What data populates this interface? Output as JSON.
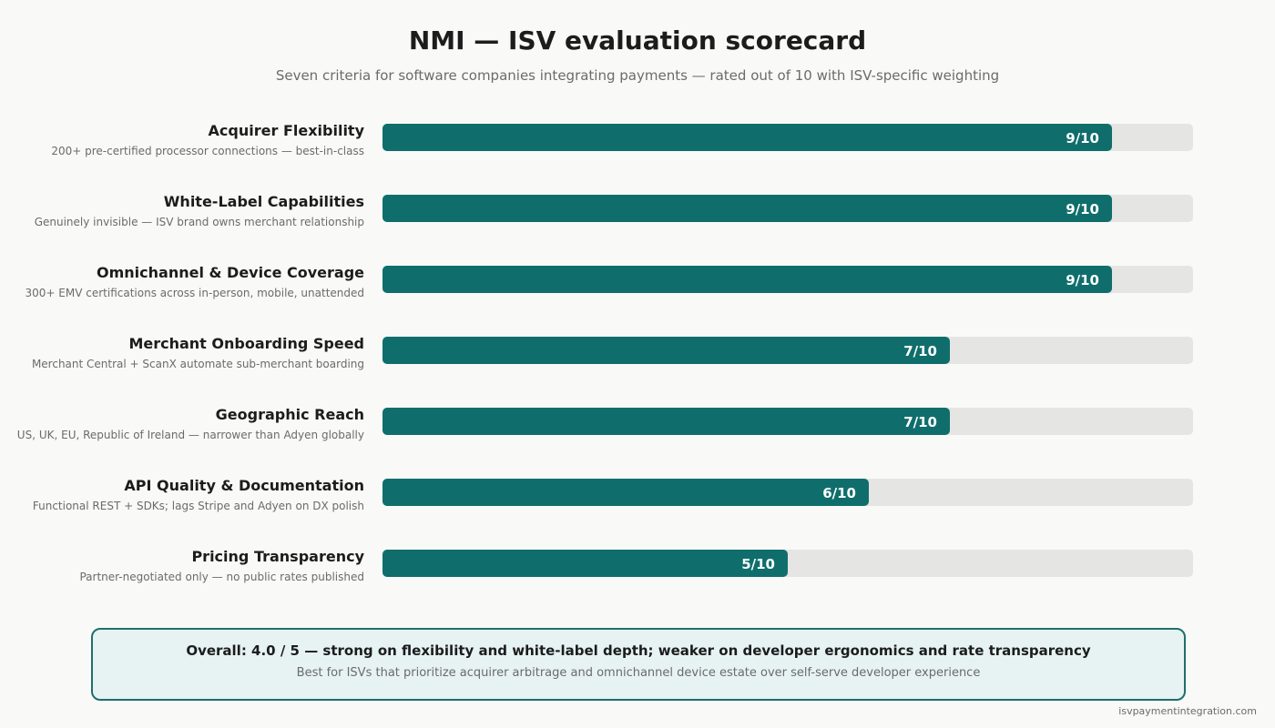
{
  "header": {
    "title": "NMI — ISV evaluation scorecard",
    "subtitle": "Seven criteria for software companies integrating payments — rated out of 10 with ISV-specific weighting"
  },
  "colors": {
    "bar_fill": "#0f6e6c",
    "bar_track": "#e5e5e3",
    "summary_bg": "#e6f3f2",
    "summary_border": "#1f6f6d"
  },
  "chart_data": {
    "type": "bar",
    "orientation": "horizontal",
    "max": 10,
    "categories": [
      "Acquirer Flexibility",
      "White-Label Capabilities",
      "Omnichannel & Device Coverage",
      "Merchant Onboarding Speed",
      "Geographic Reach",
      "API Quality & Documentation",
      "Pricing Transparency"
    ],
    "descriptions": [
      "200+ pre-certified processor connections — best-in-class",
      "Genuinely invisible — ISV brand owns merchant relationship",
      "300+ EMV certifications across in-person, mobile, unattended",
      "Merchant Central + ScanX automate sub-merchant boarding",
      "US, UK, EU, Republic of Ireland — narrower than Adyen globally",
      "Functional REST + SDKs; lags Stripe and Adyen on DX polish",
      "Partner-negotiated only — no public rates published"
    ],
    "values": [
      9,
      9,
      9,
      7,
      7,
      6,
      5
    ],
    "value_labels": [
      "9/10",
      "9/10",
      "9/10",
      "7/10",
      "7/10",
      "6/10",
      "5/10"
    ]
  },
  "summary": {
    "main": "Overall: 4.0 / 5 — strong on flexibility and white-label depth; weaker on developer ergonomics and rate transparency",
    "sub": "Best for ISVs that prioritize acquirer arbitrage and omnichannel device estate over self-serve developer experience"
  },
  "footer": {
    "source": "isvpaymentintegration.com"
  }
}
